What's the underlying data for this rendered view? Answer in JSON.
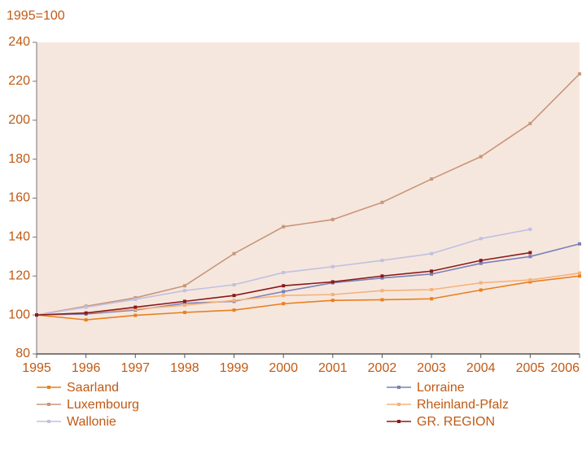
{
  "chart_data": {
    "type": "line",
    "ylabel": "1995=100",
    "x": [
      1995,
      1996,
      1997,
      1998,
      1999,
      2000,
      2001,
      2002,
      2003,
      2004,
      2005,
      2006
    ],
    "xlim": [
      1995,
      2006
    ],
    "xticks": [
      1995,
      1996,
      1997,
      1998,
      1999,
      2000,
      2001,
      2002,
      2003,
      2004,
      2005,
      2006
    ],
    "ylim": [
      80,
      240
    ],
    "yticks": [
      80,
      100,
      120,
      140,
      160,
      180,
      200,
      220,
      240
    ],
    "legend": "bottom",
    "series": [
      {
        "name": "Saarland",
        "color": "#e8801e",
        "values": [
          100,
          97.5,
          99.8,
          101.3,
          102.5,
          105.8,
          107.5,
          107.8,
          108.3,
          112.8,
          117,
          120
        ]
      },
      {
        "name": "Lorraine",
        "color": "#7a80b8",
        "values": [
          100,
          100.5,
          102.5,
          106,
          107,
          112,
          116.5,
          119,
          121,
          126.5,
          130,
          136.5
        ]
      },
      {
        "name": "Luxembourg",
        "color": "#c8967a",
        "values": [
          100,
          104.5,
          108.8,
          115,
          131.5,
          145.3,
          149,
          157.8,
          169.8,
          181.3,
          198.3,
          223.8
        ]
      },
      {
        "name": "Rheinland-Pfalz",
        "color": "#f5b27a",
        "values": [
          100,
          101,
          103,
          105,
          107.5,
          110,
          110.5,
          112.5,
          113,
          116.5,
          118,
          121.5
        ]
      },
      {
        "name": "Wallonie",
        "color": "#c0c0e0",
        "values": [
          100,
          104,
          108,
          112.5,
          115.5,
          121.8,
          124.8,
          128,
          131.5,
          139.2,
          144,
          null
        ]
      },
      {
        "name": "GR. REGION",
        "color": "#8b1a1a",
        "values": [
          100,
          101,
          104,
          107,
          110,
          115,
          117,
          120,
          122.5,
          128,
          132,
          null
        ]
      }
    ]
  }
}
